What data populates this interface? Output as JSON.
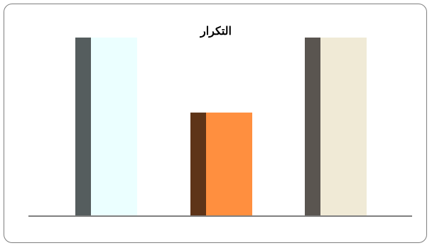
{
  "chart_data": {
    "type": "bar",
    "title": "التكرار",
    "categories": [
      "",
      "",
      ""
    ],
    "values": [
      10,
      5.8,
      10
    ],
    "ylim": [
      0,
      10
    ],
    "grid": false,
    "legend": "none",
    "colors": {
      "fronts": [
        "#ebffff",
        "#ff8f3f",
        "#f0ead6"
      ],
      "sides": [
        "#555d5e",
        "#5e3418",
        "#5a5550"
      ],
      "axis": "#808080"
    }
  }
}
